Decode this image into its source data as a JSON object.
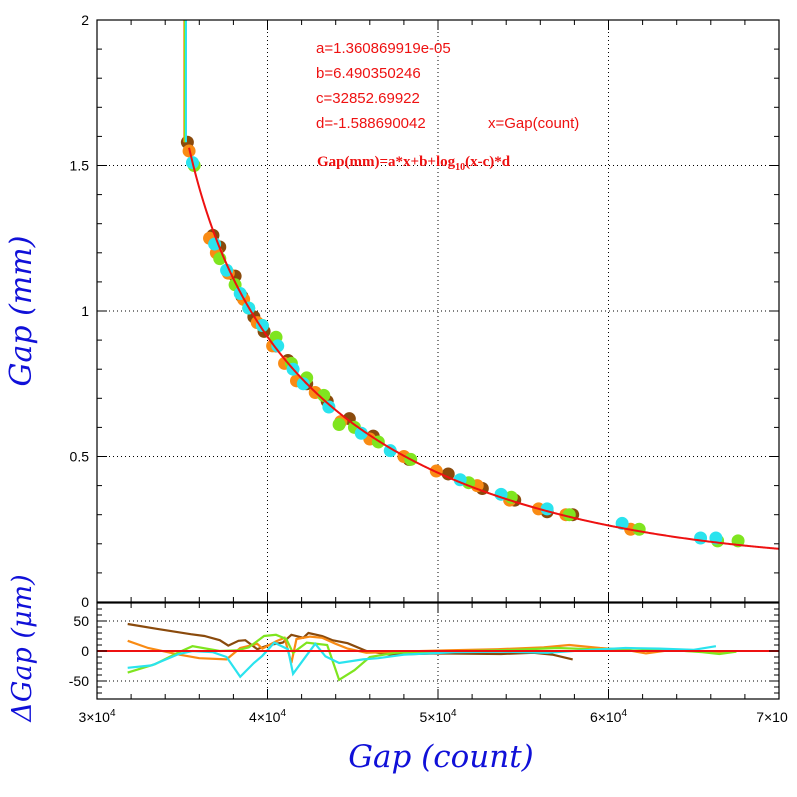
{
  "colors": {
    "fit_line": "#ee1111",
    "zero_line": "#ee1111",
    "axis_title": "#1010d8",
    "run_brown": "#8a4a0c",
    "run_orange": "#f98b14",
    "run_green": "#7fe51f",
    "run_cyan": "#2ae3ee",
    "grid": "#000000"
  },
  "annotations": {
    "a": "a=1.360869919e-05",
    "b": "b=6.490350246",
    "c": "c=32852.69922",
    "d": "d=-1.588690042",
    "x_def": "x=Gap(count)",
    "equation_prefix": "Gap(mm)=a*x+b+log",
    "equation_sub": "10",
    "equation_suffix": "(x-c)*d"
  },
  "chart_data": [
    {
      "type": "scatter",
      "panel": "main",
      "ylabel": "Gap (mm)",
      "xlim": [
        30000,
        70000
      ],
      "ylim": [
        0,
        2
      ],
      "grid": true,
      "x_ticks": [
        30000,
        40000,
        50000,
        60000,
        70000
      ],
      "y_ticks": [
        0,
        0.5,
        1,
        1.5,
        2
      ],
      "y_tick_labels": [
        "0",
        "0.5",
        "1",
        "1.5",
        "2"
      ],
      "fit": {
        "a": 1.360869919e-05,
        "b": 6.490350246,
        "c": 32852.69922,
        "d": -1.588690042,
        "x_range": [
          35400,
          70000
        ]
      },
      "series": [
        {
          "color_key": "run_brown",
          "points": [
            [
              35300,
              1.58
            ],
            [
              36800,
              1.26
            ],
            [
              37200,
              1.22
            ],
            [
              38100,
              1.12
            ],
            [
              38500,
              1.05
            ],
            [
              39200,
              0.98
            ],
            [
              39800,
              0.93
            ],
            [
              40500,
              0.88
            ],
            [
              41200,
              0.83
            ],
            [
              42300,
              0.75
            ],
            [
              43500,
              0.69
            ],
            [
              44800,
              0.63
            ],
            [
              46200,
              0.57
            ],
            [
              48300,
              0.49
            ],
            [
              50600,
              0.44
            ],
            [
              52600,
              0.39
            ],
            [
              54500,
              0.35
            ],
            [
              56400,
              0.31
            ],
            [
              57900,
              0.3
            ]
          ]
        },
        {
          "color_key": "run_orange",
          "points": [
            [
              35400,
              1.55
            ],
            [
              36600,
              1.25
            ],
            [
              37000,
              1.2
            ],
            [
              37700,
              1.13
            ],
            [
              38600,
              1.04
            ],
            [
              39400,
              0.96
            ],
            [
              40300,
              0.88
            ],
            [
              41000,
              0.82
            ],
            [
              41700,
              0.76
            ],
            [
              42800,
              0.72
            ],
            [
              44300,
              0.62
            ],
            [
              46000,
              0.56
            ],
            [
              48000,
              0.5
            ],
            [
              49900,
              0.45
            ],
            [
              52300,
              0.4
            ],
            [
              54200,
              0.35
            ],
            [
              55900,
              0.32
            ],
            [
              57500,
              0.3
            ],
            [
              61300,
              0.25
            ]
          ]
        },
        {
          "color_key": "run_green",
          "points": [
            [
              35700,
              1.5
            ],
            [
              37200,
              1.18
            ],
            [
              38100,
              1.09
            ],
            [
              38900,
              1.01
            ],
            [
              39700,
              0.95
            ],
            [
              40500,
              0.91
            ],
            [
              41400,
              0.82
            ],
            [
              42300,
              0.77
            ],
            [
              43300,
              0.71
            ],
            [
              44200,
              0.61
            ],
            [
              45100,
              0.6
            ],
            [
              46500,
              0.55
            ],
            [
              48400,
              0.49
            ],
            [
              51800,
              0.41
            ],
            [
              54300,
              0.36
            ],
            [
              57700,
              0.3
            ],
            [
              61800,
              0.25
            ],
            [
              66400,
              0.21
            ],
            [
              67600,
              0.21
            ]
          ]
        },
        {
          "color_key": "run_cyan",
          "points": [
            [
              35600,
              1.51
            ],
            [
              36900,
              1.23
            ],
            [
              37600,
              1.14
            ],
            [
              38400,
              1.06
            ],
            [
              38900,
              1.01
            ],
            [
              39700,
              0.95
            ],
            [
              40600,
              0.88
            ],
            [
              41500,
              0.8
            ],
            [
              42100,
              0.75
            ],
            [
              43600,
              0.67
            ],
            [
              45500,
              0.58
            ],
            [
              47200,
              0.52
            ],
            [
              51300,
              0.42
            ],
            [
              53700,
              0.37
            ],
            [
              56400,
              0.32
            ],
            [
              60800,
              0.27
            ],
            [
              65400,
              0.22
            ],
            [
              66300,
              0.22
            ]
          ]
        }
      ]
    },
    {
      "type": "line",
      "panel": "residual",
      "ylabel": "ΔGap (μm)",
      "xlabel": "Gap (count)",
      "xlim": [
        30000,
        70000
      ],
      "ylim": [
        -80,
        80
      ],
      "grid": true,
      "x_ticks": [
        30000,
        40000,
        50000,
        60000,
        70000
      ],
      "x_tick_labels": [
        "3×10",
        "4×10",
        "5×10",
        "6×10",
        "7×10"
      ],
      "x_tick_exponent": "4",
      "y_ticks": [
        -50,
        0,
        50
      ],
      "y_tick_labels": [
        "-50",
        "0",
        "50"
      ],
      "zero_line": 0,
      "series": [
        {
          "color_key": "run_brown",
          "points": [
            [
              31800,
              45
            ],
            [
              33500,
              37
            ],
            [
              35500,
              28
            ],
            [
              36300,
              25
            ],
            [
              37200,
              18
            ],
            [
              37700,
              9
            ],
            [
              38300,
              17
            ],
            [
              38700,
              18
            ],
            [
              39400,
              3
            ],
            [
              40100,
              10
            ],
            [
              40900,
              14
            ],
            [
              41400,
              27
            ],
            [
              42100,
              22
            ],
            [
              42400,
              30
            ],
            [
              43200,
              25
            ],
            [
              43800,
              18
            ],
            [
              44700,
              13
            ],
            [
              45800,
              0
            ],
            [
              47200,
              -6
            ],
            [
              50000,
              -4
            ],
            [
              53700,
              -5
            ],
            [
              55600,
              -3
            ],
            [
              56700,
              -6
            ],
            [
              57900,
              -14
            ]
          ]
        },
        {
          "color_key": "run_orange",
          "points": [
            [
              31800,
              17
            ],
            [
              33000,
              5
            ],
            [
              34800,
              -6
            ],
            [
              36000,
              -12
            ],
            [
              37600,
              -14
            ],
            [
              38400,
              5
            ],
            [
              39400,
              12
            ],
            [
              39700,
              4
            ],
            [
              40500,
              16
            ],
            [
              41000,
              22
            ],
            [
              41400,
              -20
            ],
            [
              41700,
              20
            ],
            [
              42500,
              24
            ],
            [
              43200,
              22
            ],
            [
              44000,
              12
            ],
            [
              44700,
              4
            ],
            [
              45800,
              -3
            ],
            [
              47800,
              -1
            ],
            [
              50500,
              1
            ],
            [
              53500,
              3
            ],
            [
              56200,
              6
            ],
            [
              57700,
              10
            ],
            [
              59500,
              5
            ],
            [
              61000,
              2
            ],
            [
              62200,
              -4
            ],
            [
              63500,
              1
            ],
            [
              65800,
              -1
            ],
            [
              67000,
              -2
            ]
          ]
        },
        {
          "color_key": "run_green",
          "points": [
            [
              31800,
              -36
            ],
            [
              33400,
              -22
            ],
            [
              34800,
              -2
            ],
            [
              35600,
              8
            ],
            [
              37200,
              0
            ],
            [
              38200,
              1
            ],
            [
              38900,
              6
            ],
            [
              39800,
              25
            ],
            [
              40500,
              27
            ],
            [
              41100,
              20
            ],
            [
              41500,
              -3
            ],
            [
              42300,
              14
            ],
            [
              43500,
              10
            ],
            [
              44200,
              -48
            ],
            [
              45100,
              -32
            ],
            [
              46000,
              -10
            ],
            [
              47500,
              -3
            ],
            [
              49500,
              -1
            ],
            [
              52000,
              0
            ],
            [
              54500,
              2
            ],
            [
              57000,
              5
            ],
            [
              59000,
              3
            ],
            [
              61500,
              4
            ],
            [
              63500,
              2
            ],
            [
              65500,
              -2
            ],
            [
              66500,
              -5
            ],
            [
              67500,
              -1
            ]
          ]
        },
        {
          "color_key": "run_cyan",
          "points": [
            [
              31800,
              -28
            ],
            [
              33200,
              -24
            ],
            [
              34800,
              -5
            ],
            [
              35600,
              0
            ],
            [
              36800,
              -2
            ],
            [
              37600,
              -10
            ],
            [
              38400,
              -43
            ],
            [
              39200,
              -20
            ],
            [
              39700,
              -8
            ],
            [
              40400,
              14
            ],
            [
              41200,
              3
            ],
            [
              41500,
              -38
            ],
            [
              42300,
              -7
            ],
            [
              42800,
              12
            ],
            [
              43400,
              -9
            ],
            [
              44200,
              -20
            ],
            [
              45600,
              -14
            ],
            [
              46500,
              -12
            ],
            [
              48000,
              -6
            ],
            [
              51000,
              -2
            ],
            [
              53800,
              -1
            ],
            [
              56400,
              -3
            ],
            [
              59000,
              2
            ],
            [
              61000,
              5
            ],
            [
              63000,
              4
            ],
            [
              65000,
              2
            ],
            [
              66300,
              8
            ]
          ]
        }
      ]
    }
  ]
}
